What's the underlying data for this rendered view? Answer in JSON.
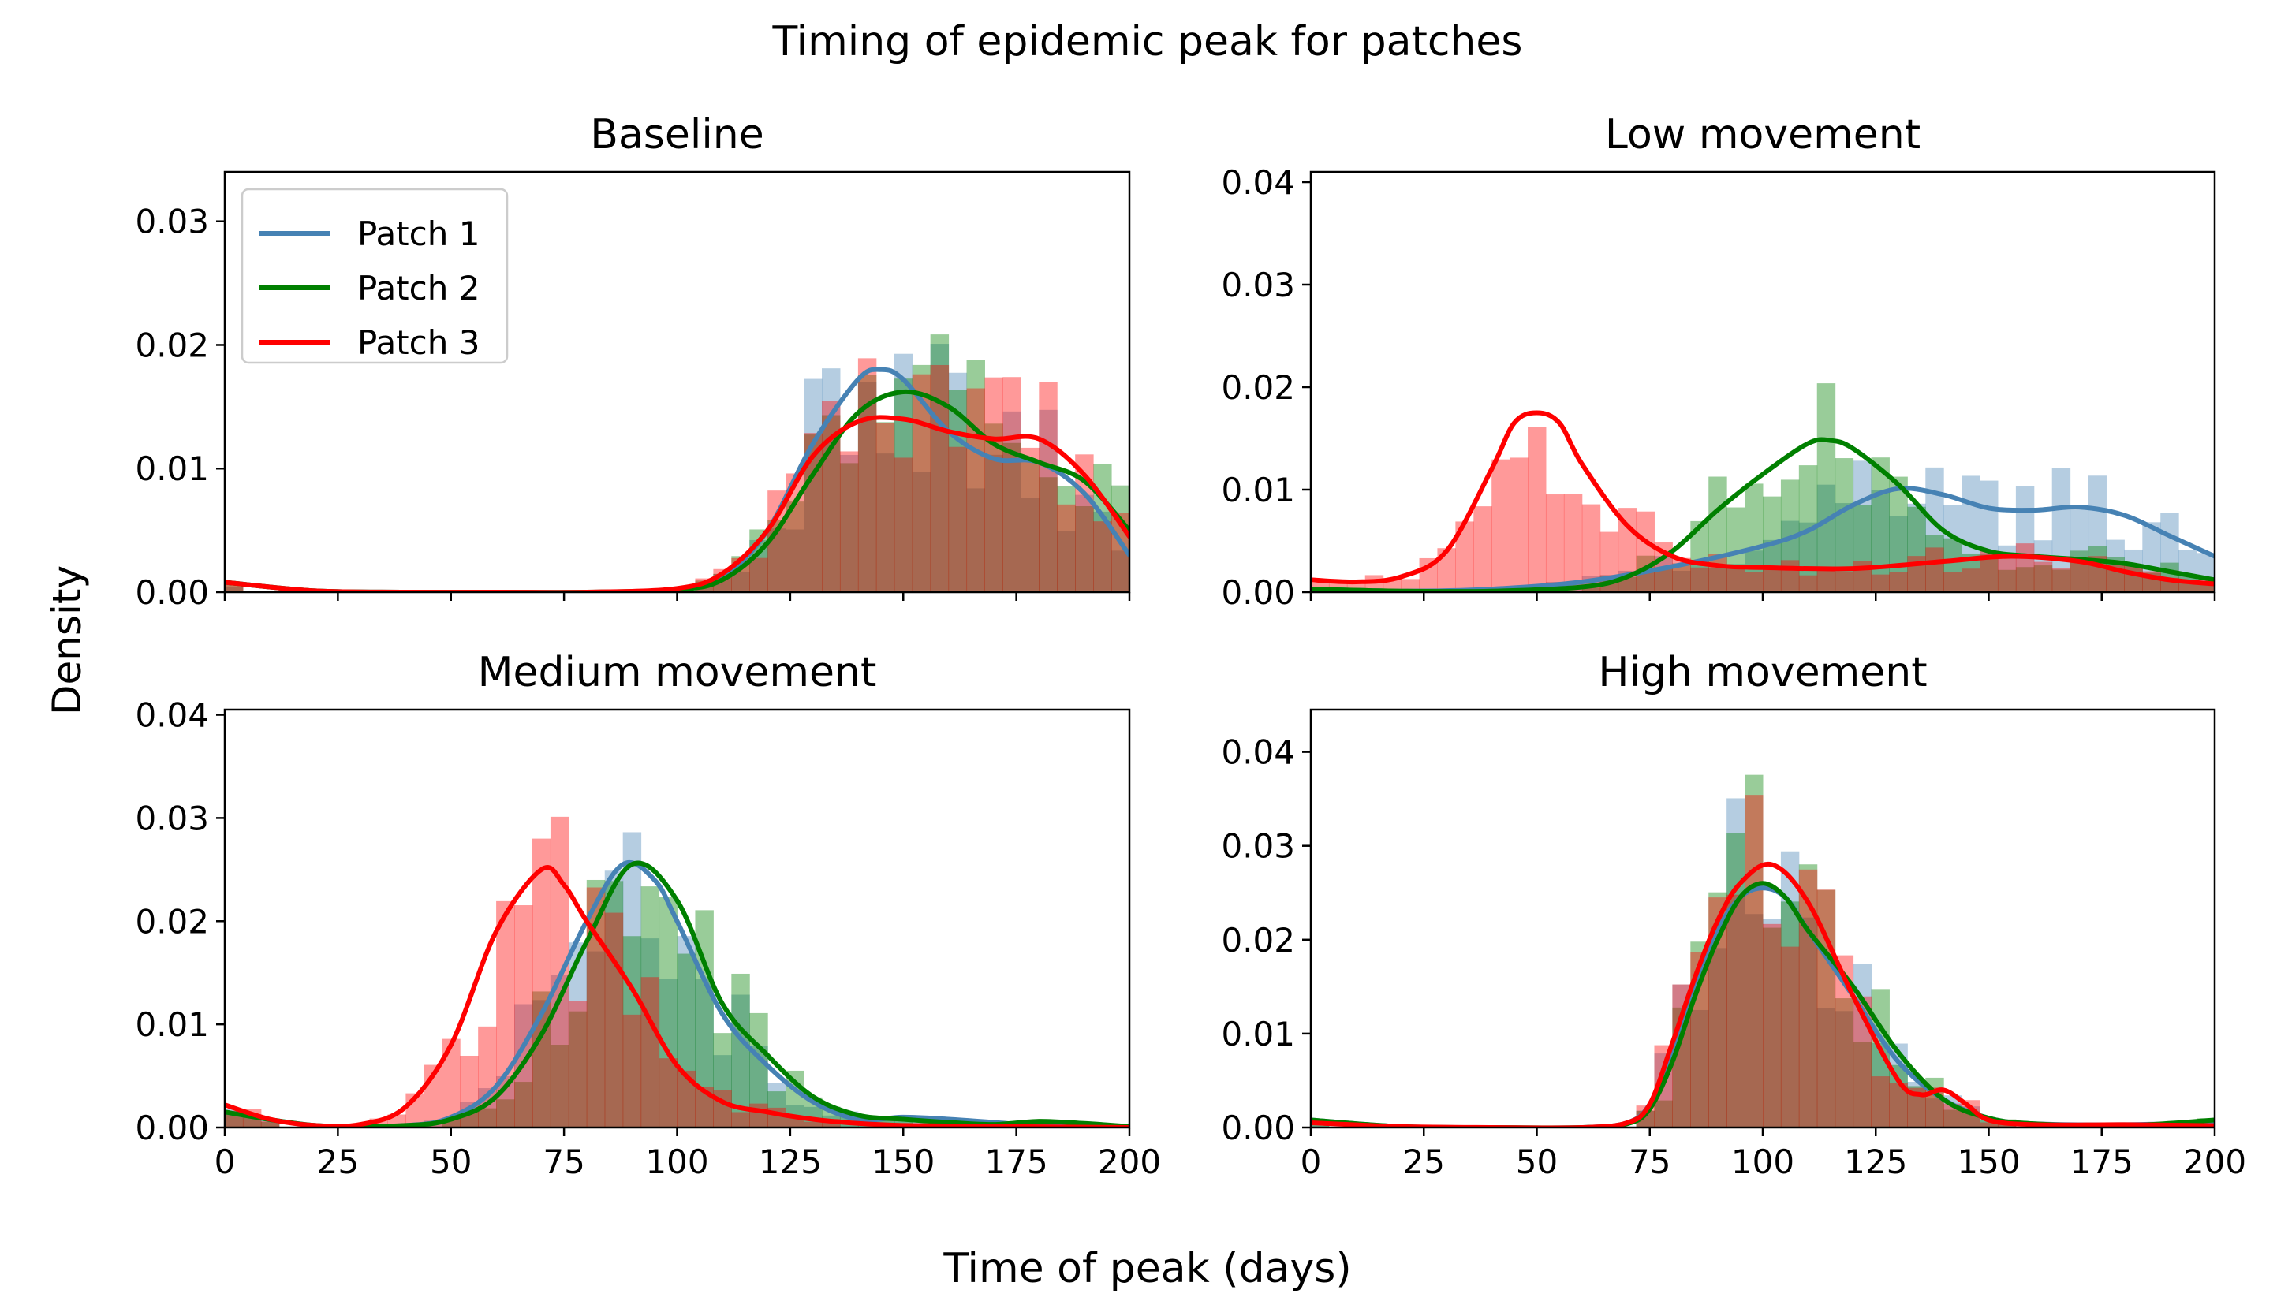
{
  "figure": {
    "title": "Timing of epidemic peak for patches",
    "xlabel": "Time of peak (days)",
    "ylabel": "Density"
  },
  "colors": {
    "Patch 1": "#4682b4",
    "Patch 2": "#008000",
    "Patch 3": "#ff0000"
  },
  "chart_data": [
    {
      "type": "line",
      "title": "Baseline",
      "xlim": [
        0,
        200
      ],
      "ylim": [
        0,
        0.034
      ],
      "yticks": [
        0.0,
        0.01,
        0.02,
        0.03
      ],
      "ytick_labels": [
        "0.00",
        "0.01",
        "0.02",
        "0.03"
      ],
      "xticks": [
        0,
        25,
        50,
        75,
        100,
        125,
        150,
        175,
        200
      ],
      "xtick_labels": [],
      "legend": "top-left",
      "series": [
        {
          "name": "Patch 1",
          "x": [
            0,
            20,
            40,
            60,
            80,
            100,
            110,
            120,
            130,
            140,
            145,
            150,
            160,
            170,
            180,
            190,
            200
          ],
          "y": [
            0.0008,
            0.0001,
            0,
            0,
            0,
            0.0002,
            0.0012,
            0.005,
            0.012,
            0.0172,
            0.018,
            0.0172,
            0.013,
            0.0108,
            0.0105,
            0.008,
            0.003
          ]
        },
        {
          "name": "Patch 2",
          "x": [
            0,
            20,
            40,
            60,
            80,
            100,
            110,
            120,
            130,
            140,
            150,
            160,
            170,
            180,
            190,
            200
          ],
          "y": [
            0.0008,
            0.0001,
            0,
            0,
            0,
            0.0002,
            0.001,
            0.004,
            0.0095,
            0.0145,
            0.0162,
            0.015,
            0.012,
            0.0105,
            0.009,
            0.005
          ]
        },
        {
          "name": "Patch 3",
          "x": [
            0,
            20,
            40,
            60,
            80,
            100,
            110,
            120,
            130,
            140,
            150,
            160,
            170,
            180,
            190,
            200
          ],
          "y": [
            0.0008,
            0.0001,
            0,
            0,
            0,
            0.0003,
            0.0015,
            0.005,
            0.011,
            0.0138,
            0.014,
            0.013,
            0.0124,
            0.0124,
            0.0095,
            0.0045
          ]
        }
      ]
    },
    {
      "type": "line",
      "title": "Low movement",
      "xlim": [
        0,
        200
      ],
      "ylim": [
        0,
        0.041
      ],
      "yticks": [
        0.0,
        0.01,
        0.02,
        0.03,
        0.04
      ],
      "ytick_labels": [
        "0.00",
        "0.01",
        "0.02",
        "0.03",
        "0.04"
      ],
      "xticks": [
        0,
        25,
        50,
        75,
        100,
        125,
        150,
        175,
        200
      ],
      "xtick_labels": [],
      "series": [
        {
          "name": "Patch 1",
          "x": [
            0,
            20,
            40,
            60,
            80,
            100,
            110,
            120,
            130,
            140,
            150,
            160,
            170,
            180,
            190,
            200
          ],
          "y": [
            0.0003,
            0.0001,
            0.0003,
            0.001,
            0.0025,
            0.0045,
            0.006,
            0.0085,
            0.0101,
            0.0095,
            0.0082,
            0.008,
            0.0083,
            0.0075,
            0.0055,
            0.0035
          ]
        },
        {
          "name": "Patch 2",
          "x": [
            0,
            20,
            40,
            60,
            70,
            80,
            90,
            100,
            110,
            115,
            120,
            130,
            140,
            150,
            160,
            170,
            180,
            190,
            200
          ],
          "y": [
            0.0003,
            0.0001,
            0.0001,
            0.0005,
            0.0015,
            0.004,
            0.008,
            0.0115,
            0.0145,
            0.0148,
            0.014,
            0.0105,
            0.006,
            0.004,
            0.0035,
            0.0032,
            0.0028,
            0.002,
            0.0012
          ]
        },
        {
          "name": "Patch 3",
          "x": [
            0,
            10,
            20,
            30,
            40,
            45,
            50,
            55,
            60,
            70,
            80,
            90,
            100,
            120,
            140,
            155,
            170,
            180,
            190,
            200
          ],
          "y": [
            0.0012,
            0.001,
            0.0015,
            0.004,
            0.012,
            0.0165,
            0.0175,
            0.0165,
            0.0125,
            0.0065,
            0.0035,
            0.0026,
            0.0024,
            0.0023,
            0.003,
            0.0035,
            0.003,
            0.002,
            0.0012,
            0.0008
          ]
        }
      ]
    },
    {
      "type": "line",
      "title": "Medium movement",
      "xlim": [
        0,
        200
      ],
      "ylim": [
        0,
        0.0405
      ],
      "yticks": [
        0.0,
        0.01,
        0.02,
        0.03,
        0.04
      ],
      "ytick_labels": [
        "0.00",
        "0.01",
        "0.02",
        "0.03",
        "0.04"
      ],
      "xticks": [
        0,
        25,
        50,
        75,
        100,
        125,
        150,
        175,
        200
      ],
      "xtick_labels": [
        "0",
        "25",
        "50",
        "75",
        "100",
        "125",
        "150",
        "175",
        "200"
      ],
      "series": [
        {
          "name": "Patch 1",
          "x": [
            0,
            20,
            40,
            50,
            60,
            70,
            80,
            88,
            95,
            100,
            110,
            120,
            130,
            140,
            150,
            160,
            170,
            180,
            200
          ],
          "y": [
            0.0015,
            0.0002,
            0.0002,
            0.001,
            0.004,
            0.011,
            0.02,
            0.0255,
            0.024,
            0.02,
            0.011,
            0.006,
            0.0025,
            0.0008,
            0.001,
            0.0008,
            0.0005,
            0.0002,
            0.0001
          ]
        },
        {
          "name": "Patch 2",
          "x": [
            0,
            20,
            40,
            50,
            60,
            70,
            80,
            90,
            100,
            110,
            120,
            130,
            140,
            150,
            160,
            170,
            180,
            190,
            200
          ],
          "y": [
            0.0015,
            0.0002,
            0.0002,
            0.0008,
            0.003,
            0.009,
            0.018,
            0.0255,
            0.022,
            0.012,
            0.007,
            0.003,
            0.0012,
            0.0008,
            0.0005,
            0.0003,
            0.0006,
            0.0004,
            0.0001
          ]
        },
        {
          "name": "Patch 3",
          "x": [
            0,
            10,
            20,
            30,
            40,
            50,
            60,
            70,
            75,
            80,
            90,
            100,
            110,
            120,
            130,
            140,
            150,
            170,
            200
          ],
          "y": [
            0.0022,
            0.0008,
            0.0002,
            0.0003,
            0.002,
            0.008,
            0.019,
            0.025,
            0.0235,
            0.02,
            0.0135,
            0.006,
            0.0025,
            0.0015,
            0.0008,
            0.0004,
            0.0002,
            0.0001,
            0
          ]
        }
      ]
    },
    {
      "type": "line",
      "title": "High movement",
      "xlim": [
        0,
        200
      ],
      "ylim": [
        0,
        0.0445
      ],
      "yticks": [
        0.0,
        0.01,
        0.02,
        0.03,
        0.04
      ],
      "ytick_labels": [
        "0.00",
        "0.01",
        "0.02",
        "0.03",
        "0.04"
      ],
      "xticks": [
        0,
        25,
        50,
        75,
        100,
        125,
        150,
        175,
        200
      ],
      "xtick_labels": [
        "0",
        "25",
        "50",
        "75",
        "100",
        "125",
        "150",
        "175",
        "200"
      ],
      "series": [
        {
          "name": "Patch 1",
          "x": [
            0,
            20,
            40,
            60,
            70,
            75,
            80,
            85,
            90,
            95,
            100,
            105,
            110,
            120,
            130,
            140,
            150,
            160,
            180,
            200
          ],
          "y": [
            0.0008,
            0.0001,
            0,
            0,
            0.0005,
            0.0025,
            0.008,
            0.015,
            0.021,
            0.0245,
            0.0255,
            0.0245,
            0.021,
            0.014,
            0.007,
            0.003,
            0.001,
            0.0004,
            0.0003,
            0.0005
          ]
        },
        {
          "name": "Patch 2",
          "x": [
            0,
            20,
            40,
            60,
            70,
            75,
            80,
            85,
            90,
            95,
            100,
            105,
            110,
            120,
            130,
            140,
            150,
            160,
            180,
            200
          ],
          "y": [
            0.0008,
            0.0001,
            0,
            0,
            0.0004,
            0.002,
            0.007,
            0.014,
            0.02,
            0.0245,
            0.026,
            0.0245,
            0.021,
            0.015,
            0.008,
            0.003,
            0.001,
            0.0004,
            0.0002,
            0.0008
          ]
        },
        {
          "name": "Patch 3",
          "x": [
            0,
            20,
            40,
            60,
            70,
            75,
            80,
            85,
            90,
            95,
            102,
            110,
            120,
            130,
            135,
            140,
            145,
            150,
            160,
            180,
            200
          ],
          "y": [
            0.0005,
            0.0001,
            0,
            0,
            0.0005,
            0.0025,
            0.009,
            0.016,
            0.022,
            0.026,
            0.028,
            0.024,
            0.014,
            0.005,
            0.0035,
            0.004,
            0.0025,
            0.0008,
            0.0003,
            0.0003,
            0.0002
          ]
        }
      ]
    }
  ]
}
